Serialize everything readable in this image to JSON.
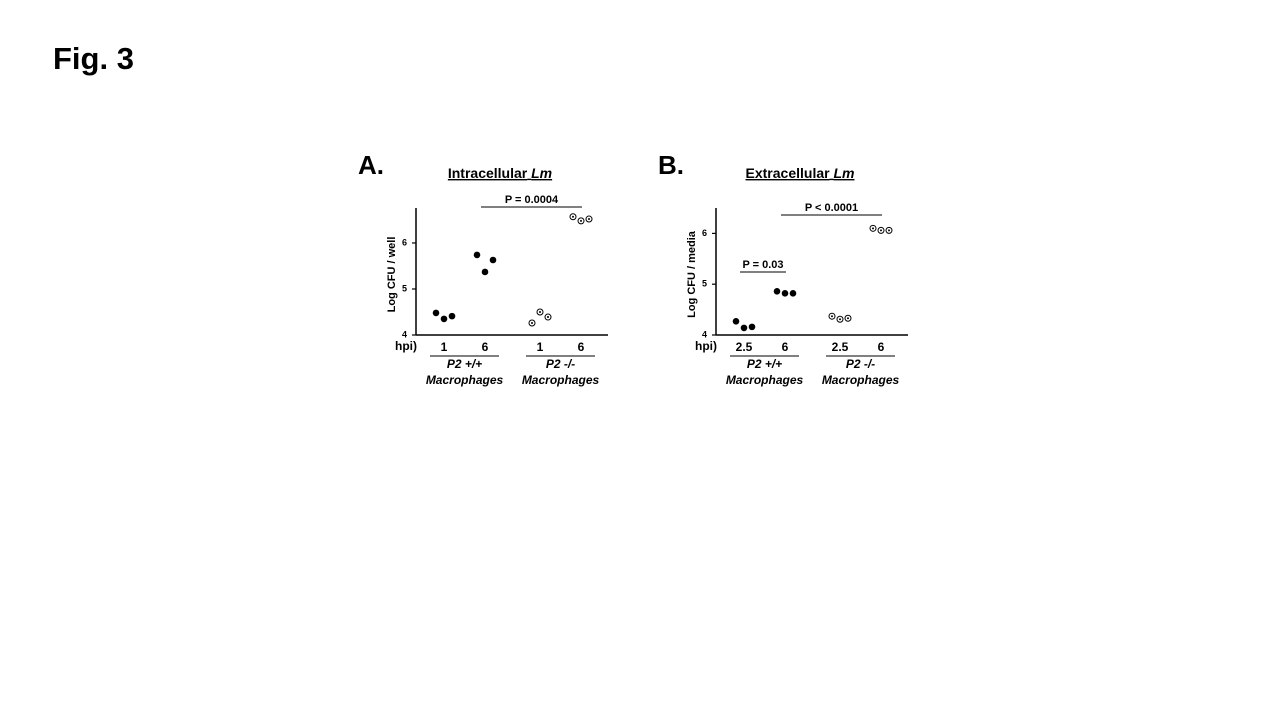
{
  "page_title": "Fig. 3",
  "chart_data": [
    {
      "type": "scatter",
      "panel_label": "A.",
      "title": "Intracellular",
      "title_organism": "Lm",
      "y_label": "Log CFU / well",
      "x_label": "hpi)",
      "categories": [
        "1",
        "6",
        "1",
        "6"
      ],
      "groups": [
        {
          "name": "P2 +/+",
          "cell_type": "Macrophages"
        },
        {
          "name": "P2 -/-",
          "cell_type": "Macrophages"
        }
      ],
      "markers": [
        "filled",
        "filled",
        "open",
        "open"
      ],
      "points": [
        [
          4.48,
          4.35,
          4.41
        ],
        [
          5.74,
          5.37,
          5.63
        ],
        [
          4.26,
          4.5,
          4.39
        ],
        [
          6.57,
          6.48,
          6.52
        ]
      ],
      "ylim": [
        4,
        6.76
      ],
      "yticks": [
        4,
        5,
        6
      ],
      "annotations": [
        "P = 0.0004"
      ]
    },
    {
      "type": "scatter",
      "panel_label": "B.",
      "title": "Extracellular",
      "title_organism": "Lm",
      "y_label": "Log CFU / media",
      "x_label": "hpi)",
      "categories": [
        "2.5",
        "6",
        "2.5",
        "6"
      ],
      "groups": [
        {
          "name": "P2 +/+",
          "cell_type": "Macrophages"
        },
        {
          "name": "P2 -/-",
          "cell_type": "Macrophages"
        }
      ],
      "markers": [
        "filled",
        "filled",
        "open",
        "open"
      ],
      "points": [
        [
          4.27,
          4.14,
          4.16
        ],
        [
          4.86,
          4.82,
          4.82
        ],
        [
          4.37,
          4.31,
          4.33
        ],
        [
          6.1,
          6.06,
          6.06
        ]
      ],
      "ylim": [
        4,
        6.5
      ],
      "yticks": [
        4,
        5,
        6
      ],
      "annotations": [
        "P = 0.03",
        "P < 0.0001"
      ]
    }
  ]
}
